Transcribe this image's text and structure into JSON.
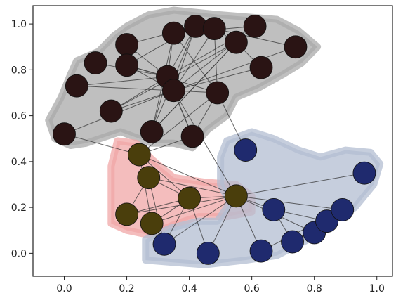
{
  "chart_data": {
    "type": "scatter",
    "title": "",
    "xlabel": "",
    "ylabel": "",
    "xlim": [
      -0.1,
      1.05
    ],
    "ylim": [
      -0.1,
      1.08
    ],
    "grid": false,
    "x_ticks": [
      "0.0",
      "0.2",
      "0.4",
      "0.6",
      "0.8",
      "1.0"
    ],
    "x_tick_values": [
      0.0,
      0.2,
      0.4,
      0.6,
      0.8,
      1.0
    ],
    "y_ticks": [
      "0.0",
      "0.2",
      "0.4",
      "0.6",
      "0.8",
      "1.0"
    ],
    "y_tick_values": [
      0.0,
      0.2,
      0.4,
      0.6,
      0.8,
      1.0
    ],
    "colors": {
      "black_group": "#2a1414",
      "olive_group": "#4a3e0c",
      "blue_group": "#1f2a6e",
      "black_hull": "#a9a9a9",
      "red_hull": "#f0a7a7",
      "blue_hull": "#b3bed2",
      "edge": "#333333"
    },
    "hulls": [
      {
        "group": "black",
        "points": [
          [
            0.27,
            1.04
          ],
          [
            0.35,
            1.06
          ],
          [
            0.5,
            1.04
          ],
          [
            0.68,
            1.02
          ],
          [
            0.75,
            0.97
          ],
          [
            0.81,
            0.9
          ],
          [
            0.76,
            0.83
          ],
          [
            0.7,
            0.78
          ],
          [
            0.62,
            0.72
          ],
          [
            0.55,
            0.68
          ],
          [
            0.52,
            0.6
          ],
          [
            0.46,
            0.54
          ],
          [
            0.41,
            0.46
          ],
          [
            0.35,
            0.48
          ],
          [
            0.28,
            0.48
          ],
          [
            0.18,
            0.53
          ],
          [
            0.07,
            0.48
          ],
          [
            0.02,
            0.47
          ],
          [
            -0.03,
            0.5
          ],
          [
            -0.05,
            0.58
          ],
          [
            -0.01,
            0.68
          ],
          [
            0.02,
            0.78
          ],
          [
            0.04,
            0.84
          ],
          [
            0.11,
            0.88
          ],
          [
            0.16,
            0.95
          ],
          [
            0.2,
            0.99
          ]
        ]
      },
      {
        "group": "red",
        "points": [
          [
            0.17,
            0.49
          ],
          [
            0.23,
            0.48
          ],
          [
            0.28,
            0.41
          ],
          [
            0.35,
            0.33
          ],
          [
            0.45,
            0.31
          ],
          [
            0.55,
            0.3
          ],
          [
            0.6,
            0.25
          ],
          [
            0.6,
            0.18
          ],
          [
            0.52,
            0.16
          ],
          [
            0.43,
            0.16
          ],
          [
            0.36,
            0.13
          ],
          [
            0.27,
            0.08
          ],
          [
            0.2,
            0.1
          ],
          [
            0.15,
            0.13
          ],
          [
            0.15,
            0.25
          ],
          [
            0.15,
            0.38
          ]
        ]
      },
      {
        "group": "blue",
        "points": [
          [
            0.52,
            0.49
          ],
          [
            0.6,
            0.53
          ],
          [
            0.67,
            0.5
          ],
          [
            0.75,
            0.45
          ],
          [
            0.82,
            0.42
          ],
          [
            0.9,
            0.45
          ],
          [
            0.98,
            0.44
          ],
          [
            1.01,
            0.39
          ],
          [
            0.99,
            0.3
          ],
          [
            0.96,
            0.25
          ],
          [
            0.93,
            0.2
          ],
          [
            0.87,
            0.15
          ],
          [
            0.78,
            0.06
          ],
          [
            0.68,
            -0.01
          ],
          [
            0.58,
            -0.03
          ],
          [
            0.45,
            -0.05
          ],
          [
            0.35,
            -0.04
          ],
          [
            0.26,
            -0.03
          ],
          [
            0.26,
            0.06
          ],
          [
            0.34,
            0.11
          ],
          [
            0.43,
            0.14
          ],
          [
            0.49,
            0.14
          ],
          [
            0.53,
            0.22
          ],
          [
            0.5,
            0.3
          ],
          [
            0.5,
            0.42
          ]
        ]
      }
    ],
    "nodes": [
      {
        "id": 0,
        "x": 0.0,
        "y": 0.52,
        "group": "black"
      },
      {
        "id": 1,
        "x": 0.04,
        "y": 0.73,
        "group": "black"
      },
      {
        "id": 2,
        "x": 0.1,
        "y": 0.83,
        "group": "black"
      },
      {
        "id": 3,
        "x": 0.15,
        "y": 0.62,
        "group": "black"
      },
      {
        "id": 4,
        "x": 0.2,
        "y": 0.91,
        "group": "black"
      },
      {
        "id": 5,
        "x": 0.2,
        "y": 0.82,
        "group": "black"
      },
      {
        "id": 6,
        "x": 0.28,
        "y": 0.53,
        "group": "black"
      },
      {
        "id": 7,
        "x": 0.33,
        "y": 0.77,
        "group": "black"
      },
      {
        "id": 8,
        "x": 0.35,
        "y": 0.71,
        "group": "black"
      },
      {
        "id": 9,
        "x": 0.35,
        "y": 0.96,
        "group": "black"
      },
      {
        "id": 10,
        "x": 0.42,
        "y": 0.99,
        "group": "black"
      },
      {
        "id": 11,
        "x": 0.41,
        "y": 0.51,
        "group": "black"
      },
      {
        "id": 12,
        "x": 0.48,
        "y": 0.98,
        "group": "black"
      },
      {
        "id": 13,
        "x": 0.49,
        "y": 0.7,
        "group": "black"
      },
      {
        "id": 14,
        "x": 0.55,
        "y": 0.92,
        "group": "black"
      },
      {
        "id": 15,
        "x": 0.61,
        "y": 0.99,
        "group": "black"
      },
      {
        "id": 16,
        "x": 0.63,
        "y": 0.81,
        "group": "black"
      },
      {
        "id": 17,
        "x": 0.74,
        "y": 0.9,
        "group": "black"
      },
      {
        "id": 18,
        "x": 0.24,
        "y": 0.43,
        "group": "olive"
      },
      {
        "id": 19,
        "x": 0.27,
        "y": 0.33,
        "group": "olive"
      },
      {
        "id": 20,
        "x": 0.2,
        "y": 0.17,
        "group": "olive"
      },
      {
        "id": 21,
        "x": 0.28,
        "y": 0.13,
        "group": "olive"
      },
      {
        "id": 22,
        "x": 0.4,
        "y": 0.24,
        "group": "olive"
      },
      {
        "id": 23,
        "x": 0.55,
        "y": 0.25,
        "group": "olive"
      },
      {
        "id": 24,
        "x": 0.58,
        "y": 0.45,
        "group": "blue"
      },
      {
        "id": 25,
        "x": 0.67,
        "y": 0.19,
        "group": "blue"
      },
      {
        "id": 26,
        "x": 0.32,
        "y": 0.04,
        "group": "blue"
      },
      {
        "id": 27,
        "x": 0.46,
        "y": 0.0,
        "group": "blue"
      },
      {
        "id": 28,
        "x": 0.63,
        "y": 0.01,
        "group": "blue"
      },
      {
        "id": 29,
        "x": 0.73,
        "y": 0.05,
        "group": "blue"
      },
      {
        "id": 30,
        "x": 0.8,
        "y": 0.09,
        "group": "blue"
      },
      {
        "id": 31,
        "x": 0.84,
        "y": 0.14,
        "group": "blue"
      },
      {
        "id": 32,
        "x": 0.89,
        "y": 0.19,
        "group": "blue"
      },
      {
        "id": 33,
        "x": 0.96,
        "y": 0.35,
        "group": "blue"
      }
    ],
    "edges": [
      [
        0,
        18
      ],
      [
        0,
        8
      ],
      [
        1,
        7
      ],
      [
        1,
        13
      ],
      [
        2,
        7
      ],
      [
        3,
        8
      ],
      [
        3,
        7
      ],
      [
        3,
        14
      ],
      [
        4,
        7
      ],
      [
        4,
        5
      ],
      [
        4,
        10
      ],
      [
        5,
        7
      ],
      [
        5,
        10
      ],
      [
        5,
        13
      ],
      [
        6,
        7
      ],
      [
        6,
        9
      ],
      [
        6,
        14
      ],
      [
        7,
        9
      ],
      [
        7,
        10
      ],
      [
        7,
        11
      ],
      [
        7,
        15
      ],
      [
        8,
        10
      ],
      [
        8,
        11
      ],
      [
        8,
        12
      ],
      [
        8,
        15
      ],
      [
        8,
        17
      ],
      [
        8,
        23
      ],
      [
        9,
        13
      ],
      [
        9,
        15
      ],
      [
        10,
        12
      ],
      [
        11,
        13
      ],
      [
        11,
        18
      ],
      [
        12,
        13
      ],
      [
        12,
        14
      ],
      [
        12,
        17
      ],
      [
        13,
        18
      ],
      [
        13,
        24
      ],
      [
        14,
        16
      ],
      [
        14,
        6
      ],
      [
        16,
        8
      ],
      [
        18,
        21
      ],
      [
        18,
        22
      ],
      [
        18,
        23
      ],
      [
        19,
        20
      ],
      [
        19,
        22
      ],
      [
        19,
        23
      ],
      [
        20,
        22
      ],
      [
        20,
        23
      ],
      [
        21,
        22
      ],
      [
        21,
        23
      ],
      [
        22,
        23
      ],
      [
        22,
        26
      ],
      [
        22,
        27
      ],
      [
        23,
        25
      ],
      [
        23,
        26
      ],
      [
        23,
        27
      ],
      [
        23,
        28
      ],
      [
        23,
        30
      ],
      [
        23,
        32
      ],
      [
        23,
        33
      ],
      [
        25,
        29
      ],
      [
        25,
        31
      ],
      [
        26,
        19
      ],
      [
        28,
        32
      ],
      [
        29,
        32
      ],
      [
        10,
        6
      ],
      [
        5,
        8
      ]
    ]
  }
}
